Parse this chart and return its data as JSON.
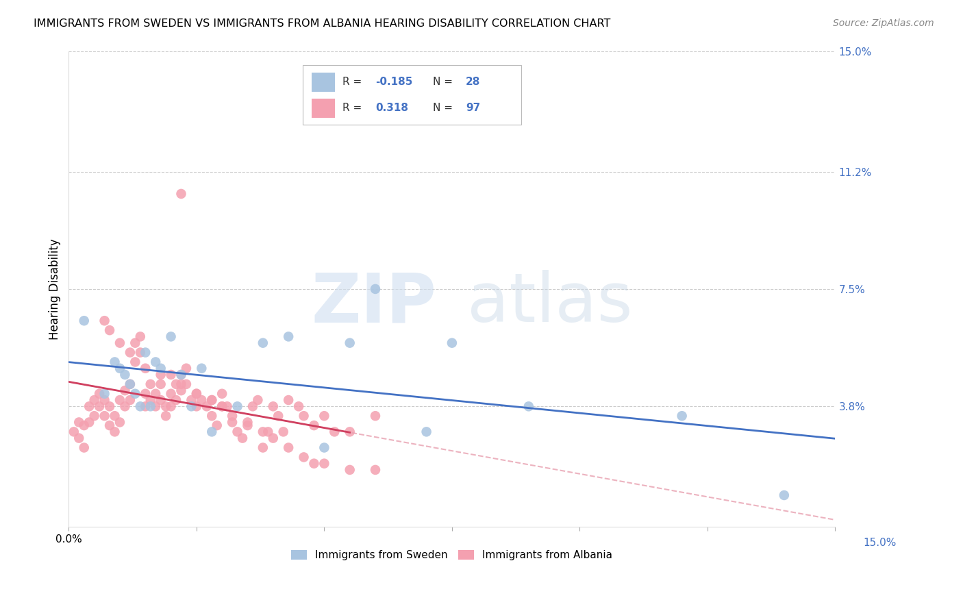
{
  "title": "IMMIGRANTS FROM SWEDEN VS IMMIGRANTS FROM ALBANIA HEARING DISABILITY CORRELATION CHART",
  "source": "Source: ZipAtlas.com",
  "ylabel": "Hearing Disability",
  "xlim": [
    0.0,
    0.15
  ],
  "ylim": [
    0.0,
    0.15
  ],
  "ytick_labels": [
    "3.8%",
    "7.5%",
    "11.2%",
    "15.0%"
  ],
  "ytick_values": [
    0.038,
    0.075,
    0.112,
    0.15
  ],
  "xtick_values": [
    0.0,
    0.025,
    0.05,
    0.075,
    0.1,
    0.125,
    0.15
  ],
  "sweden_R": -0.185,
  "sweden_N": 28,
  "albania_R": 0.318,
  "albania_N": 97,
  "sweden_color": "#a8c4e0",
  "albania_color": "#f4a0b0",
  "sweden_line_color": "#4472c4",
  "albania_line_color": "#d04060",
  "albania_dashed_color": "#e8a0b0",
  "sweden_x": [
    0.003,
    0.007,
    0.009,
    0.01,
    0.011,
    0.012,
    0.013,
    0.014,
    0.015,
    0.016,
    0.017,
    0.018,
    0.02,
    0.022,
    0.024,
    0.026,
    0.028,
    0.033,
    0.038,
    0.043,
    0.05,
    0.06,
    0.07,
    0.09,
    0.12,
    0.14,
    0.075,
    0.055
  ],
  "sweden_y": [
    0.065,
    0.042,
    0.052,
    0.05,
    0.048,
    0.045,
    0.042,
    0.038,
    0.055,
    0.038,
    0.052,
    0.05,
    0.06,
    0.048,
    0.038,
    0.05,
    0.03,
    0.038,
    0.058,
    0.06,
    0.025,
    0.075,
    0.03,
    0.038,
    0.035,
    0.01,
    0.058,
    0.058
  ],
  "albania_x": [
    0.001,
    0.002,
    0.002,
    0.003,
    0.003,
    0.004,
    0.004,
    0.005,
    0.005,
    0.006,
    0.006,
    0.007,
    0.007,
    0.008,
    0.008,
    0.009,
    0.009,
    0.01,
    0.01,
    0.011,
    0.011,
    0.012,
    0.012,
    0.013,
    0.013,
    0.014,
    0.014,
    0.015,
    0.015,
    0.016,
    0.016,
    0.017,
    0.017,
    0.018,
    0.018,
    0.019,
    0.019,
    0.02,
    0.02,
    0.021,
    0.021,
    0.022,
    0.022,
    0.023,
    0.023,
    0.024,
    0.025,
    0.025,
    0.026,
    0.027,
    0.028,
    0.028,
    0.029,
    0.03,
    0.03,
    0.031,
    0.032,
    0.033,
    0.034,
    0.035,
    0.036,
    0.037,
    0.038,
    0.039,
    0.04,
    0.041,
    0.042,
    0.043,
    0.045,
    0.046,
    0.048,
    0.05,
    0.052,
    0.055,
    0.007,
    0.008,
    0.01,
    0.012,
    0.015,
    0.018,
    0.02,
    0.022,
    0.025,
    0.028,
    0.03,
    0.032,
    0.035,
    0.038,
    0.04,
    0.043,
    0.046,
    0.048,
    0.05,
    0.055,
    0.06,
    0.022,
    0.06
  ],
  "albania_y": [
    0.03,
    0.028,
    0.033,
    0.025,
    0.032,
    0.033,
    0.038,
    0.035,
    0.04,
    0.038,
    0.042,
    0.035,
    0.04,
    0.032,
    0.038,
    0.03,
    0.035,
    0.033,
    0.04,
    0.038,
    0.043,
    0.04,
    0.045,
    0.052,
    0.058,
    0.055,
    0.06,
    0.042,
    0.038,
    0.04,
    0.045,
    0.038,
    0.042,
    0.04,
    0.045,
    0.035,
    0.038,
    0.038,
    0.042,
    0.04,
    0.045,
    0.043,
    0.048,
    0.045,
    0.05,
    0.04,
    0.042,
    0.038,
    0.04,
    0.038,
    0.035,
    0.04,
    0.032,
    0.038,
    0.042,
    0.038,
    0.033,
    0.03,
    0.028,
    0.032,
    0.038,
    0.04,
    0.025,
    0.03,
    0.038,
    0.035,
    0.03,
    0.04,
    0.038,
    0.035,
    0.032,
    0.035,
    0.03,
    0.03,
    0.065,
    0.062,
    0.058,
    0.055,
    0.05,
    0.048,
    0.048,
    0.045,
    0.042,
    0.04,
    0.038,
    0.035,
    0.033,
    0.03,
    0.028,
    0.025,
    0.022,
    0.02,
    0.02,
    0.018,
    0.018,
    0.105,
    0.035
  ]
}
